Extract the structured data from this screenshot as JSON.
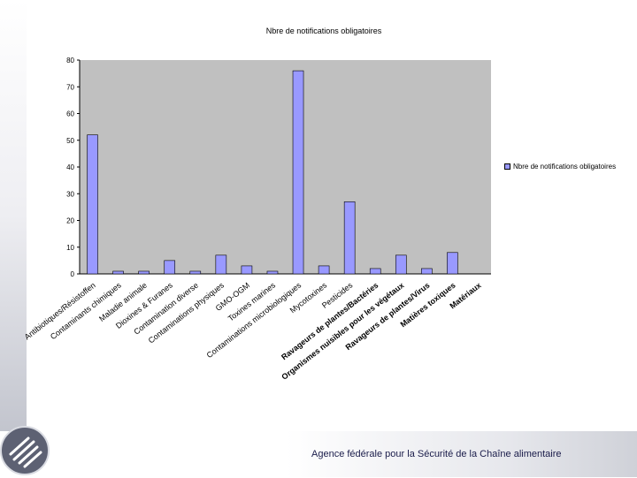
{
  "chart_data": {
    "type": "bar",
    "title": "Nbre de notifications obligatoires",
    "categories": [
      "Antibiotiques/Résistoffen",
      "Contaminants chimiques",
      "Maladie animale",
      "Dioxines & Furanes",
      "Contamination diverse",
      "Contaminations physiques",
      "GMO-OGM",
      "Toxines marines",
      "Contaminations microbiologiques",
      "Mycotoxines",
      "Pesticides",
      "Ravageurs de plantes/Bactéries",
      "Organismes nuisibles pour les végétaux",
      "Ravageurs de plantes/Virus",
      "Matières toxiques",
      "Matériaux"
    ],
    "series": [
      {
        "name": "Nbre de notifications obligatoires",
        "values": [
          52,
          1,
          1,
          5,
          1,
          7,
          3,
          1,
          76,
          3,
          27,
          2,
          7,
          2,
          8,
          0
        ],
        "color": "#9999ff"
      }
    ],
    "ylim": [
      0,
      80
    ],
    "yticks": [
      0,
      10,
      20,
      30,
      40,
      50,
      60,
      70,
      80
    ],
    "grid": false,
    "legend": "right",
    "plot_background": "#c0c0c0"
  },
  "footer": {
    "agency": "Agence fédérale pour la Sécurité de la Chaîne alimentaire"
  },
  "logo": {
    "icon": "fork-icon"
  }
}
